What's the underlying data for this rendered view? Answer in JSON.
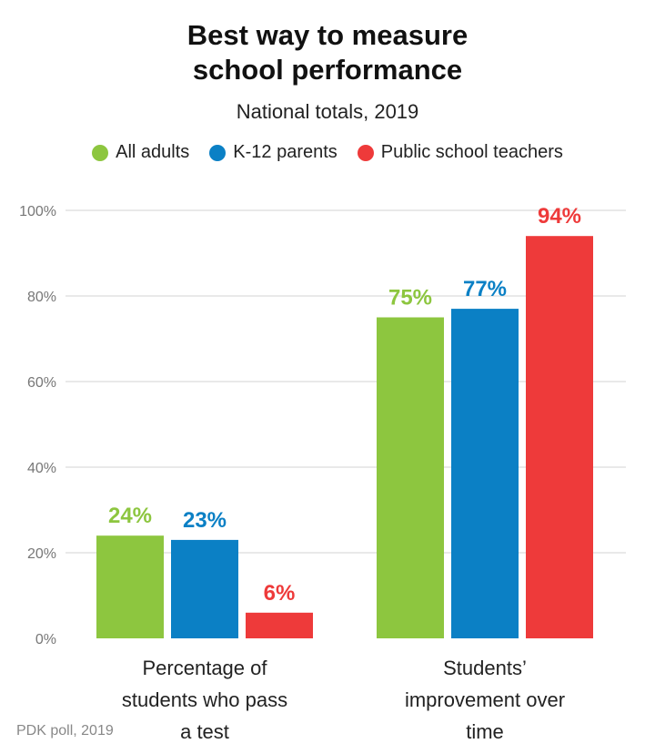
{
  "chart_data": {
    "type": "bar",
    "title": "Best way to measure school performance",
    "title_lines": [
      "Best way to measure",
      "school performance"
    ],
    "subtitle": "National totals, 2019",
    "categories": [
      "Percentage of students who pass a test",
      "Students’ improvement over time"
    ],
    "category_lines": [
      [
        "Percentage of",
        "students who pass",
        "a test"
      ],
      [
        "Students’",
        "improvement over",
        "time"
      ]
    ],
    "series": [
      {
        "name": "All adults",
        "color": "#8dc63f",
        "values": [
          24,
          75
        ]
      },
      {
        "name": "K-12 parents",
        "color": "#0b80c5",
        "values": [
          23,
          77
        ]
      },
      {
        "name": "Public school teachers",
        "color": "#ee3a3a",
        "values": [
          6,
          94
        ]
      }
    ],
    "ylim": [
      0,
      100
    ],
    "yticks": [
      0,
      20,
      40,
      60,
      80,
      100
    ],
    "ytick_labels": [
      "0%",
      "20%",
      "40%",
      "60%",
      "80%",
      "100%"
    ],
    "grid": true,
    "legend_placement": "top-center",
    "source": "PDK poll, 2019"
  }
}
